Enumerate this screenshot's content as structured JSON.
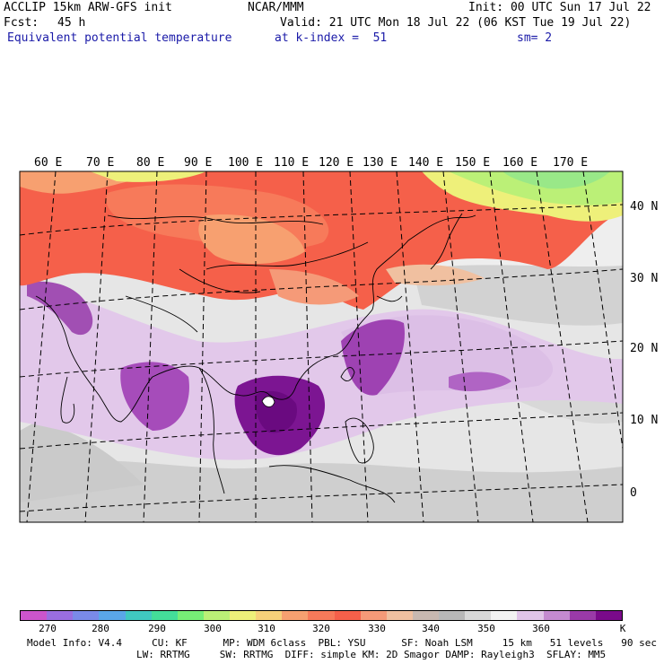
{
  "header": {
    "model": "ACCLIP 15km ARW-GFS init",
    "org": "NCAR/MMM",
    "init": "Init: 00 UTC Sun 17 Jul 22",
    "fcst_label": "Fcst:",
    "fcst_value": "45 h",
    "valid": "Valid: 21 UTC Mon 18 Jul 22 (06 KST Tue 19 Jul 22)",
    "field": "Equivalent potential temperature",
    "level": "at k-index =  51",
    "smoothing": "sm= 2"
  },
  "map": {
    "lon_labels": [
      "60 E",
      "70 E",
      "80 E",
      "90 E",
      "100 E",
      "110 E",
      "120 E",
      "130 E",
      "140 E",
      "150 E",
      "160 E",
      "170 E"
    ],
    "lat_labels": [
      "40 N",
      "30 N",
      "20 N",
      "10 N",
      "0"
    ]
  },
  "colorbar": {
    "unit": "K",
    "labels": [
      "270",
      "280",
      "290",
      "300",
      "310",
      "320",
      "330",
      "340",
      "350",
      "360"
    ],
    "colors": [
      "#cc55cc",
      "#9a6ee0",
      "#7a8ae8",
      "#5aa6e8",
      "#40c8c0",
      "#44dd99",
      "#77ee77",
      "#bbf077",
      "#eef07a",
      "#f7d07a",
      "#f7a070",
      "#f77a5a",
      "#f5604a",
      "#f59a78",
      "#f0c0a0",
      "#c8b8b0",
      "#b8b8b8",
      "#d8d8d8",
      "#f2f2f2",
      "#e0c4e8",
      "#c48ad0",
      "#9a3aa8",
      "#7a0a8a"
    ]
  },
  "footer": {
    "line1": "Model Info: V4.4     CU: KF      MP: WDM 6class  PBL: YSU      SF: Noah LSM     15 km   51 levels   90 sec",
    "line2": "LW: RRTMG     SW: RRTMG  DIFF: simple KM: 2D Smagor DAMP: Rayleigh3  SFLAY: MM5"
  }
}
